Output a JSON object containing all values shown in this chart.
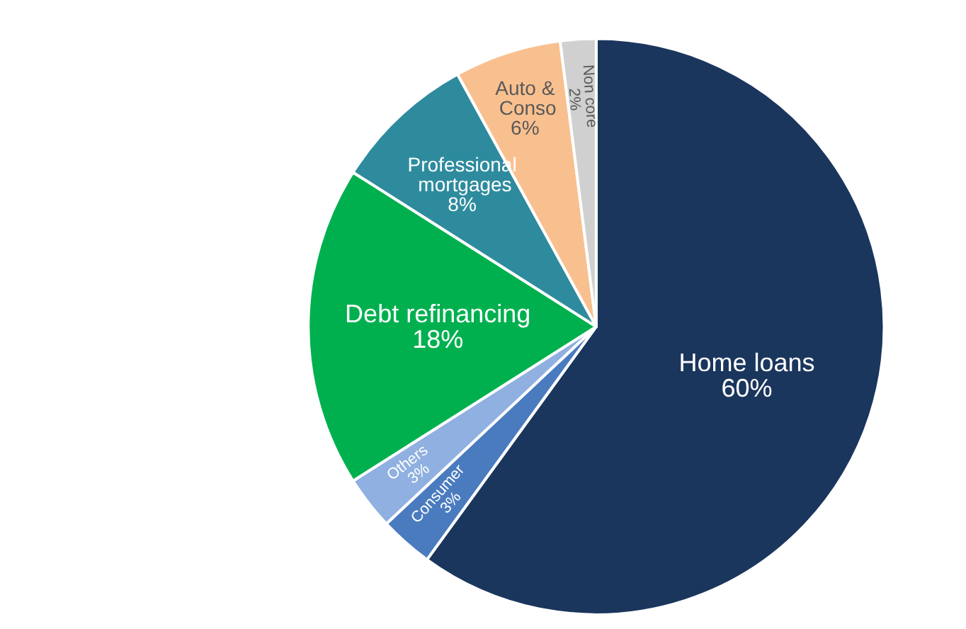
{
  "chart_data": {
    "type": "pie",
    "categories": [
      "Home loans",
      "Consumer",
      "Others",
      "Debt refinancing",
      "Professional mortgages",
      "Auto & Conso",
      "Non core"
    ],
    "values": [
      60,
      3,
      3,
      18,
      8,
      6,
      2
    ],
    "colors": [
      "#1b365d",
      "#4a7bbf",
      "#8fb0e0",
      "#00b04f",
      "#2e8b9e",
      "#f9c08f",
      "#d0d0d0"
    ],
    "value_labels": [
      "60%",
      "3%",
      "3%",
      "18%",
      "8%",
      "6%",
      "2%"
    ],
    "legend": false
  }
}
